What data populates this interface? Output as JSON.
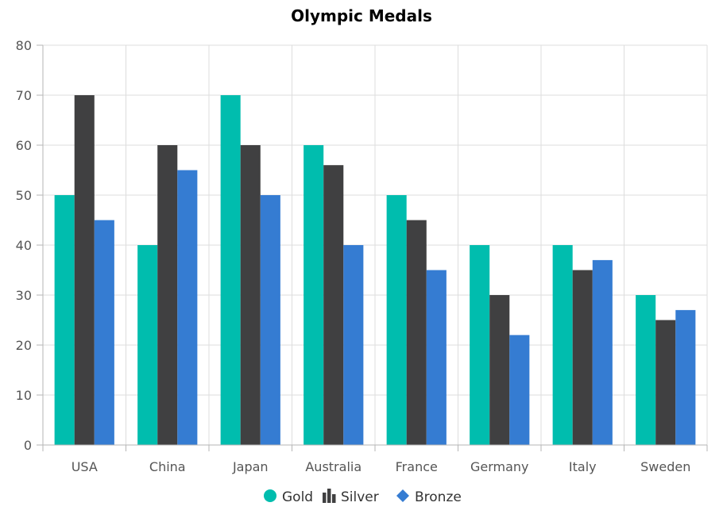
{
  "chart_data": {
    "type": "bar",
    "title": "Olympic Medals",
    "xlabel": "",
    "ylabel": "",
    "categories": [
      "USA",
      "China",
      "Japan",
      "Australia",
      "France",
      "Germany",
      "Italy",
      "Sweden"
    ],
    "series": [
      {
        "name": "Gold",
        "values": [
          50,
          40,
          70,
          60,
          50,
          40,
          40,
          30
        ],
        "color": "#00BDAE",
        "legend_icon": "circle-icon"
      },
      {
        "name": "Silver",
        "values": [
          70,
          60,
          60,
          56,
          45,
          30,
          35,
          25
        ],
        "color": "#404041",
        "legend_icon": "bar-chart-icon"
      },
      {
        "name": "Bronze",
        "values": [
          45,
          55,
          50,
          40,
          35,
          22,
          37,
          27
        ],
        "color": "#357CD2",
        "legend_icon": "diamond-icon"
      }
    ],
    "ylim": [
      0,
      80
    ],
    "y_ticks": [
      0,
      10,
      20,
      30,
      40,
      50,
      60,
      70,
      80
    ],
    "grid": true,
    "legend_position": "bottom"
  },
  "colors": {
    "gridline": "#dddddd",
    "axis_line": "#b5b5b5",
    "tick_text": "#555555"
  }
}
